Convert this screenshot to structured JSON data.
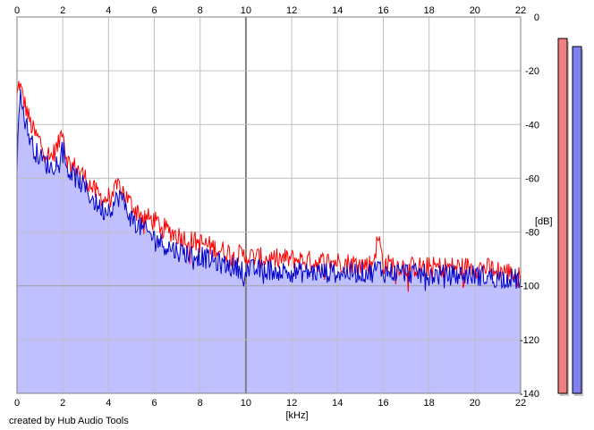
{
  "chart_data": {
    "type": "area",
    "title": "",
    "xlabel": "[kHz]",
    "ylabel": "[dB]",
    "x_unit": "kHz",
    "y_unit": "dB",
    "xlim": [
      0,
      22
    ],
    "ylim": [
      -140,
      0
    ],
    "x_ticks": [
      0,
      2,
      4,
      6,
      8,
      10,
      12,
      14,
      16,
      18,
      20,
      22
    ],
    "y_ticks": [
      0,
      -20,
      -40,
      -60,
      -80,
      -100,
      -120,
      -140
    ],
    "y_tick_labels": [
      "0",
      "-20",
      "-40",
      "-60",
      "-80",
      "-100",
      "-120",
      "-140"
    ],
    "grid": true,
    "x_tick_position": "top and bottom",
    "y_tick_position": "right",
    "series": [
      {
        "channel": "left",
        "color": "#ff0000",
        "x": [
          0.0,
          0.1,
          0.2,
          0.4,
          0.6,
          0.8,
          1.0,
          1.2,
          1.5,
          1.8,
          2.0,
          2.1,
          2.3,
          2.6,
          3.0,
          3.4,
          3.8,
          4.0,
          4.2,
          4.5,
          4.7,
          5.0,
          5.5,
          6.0,
          6.5,
          7.0,
          7.5,
          8.0,
          9.0,
          10.0,
          11.0,
          12.0,
          13.0,
          14.0,
          15.0,
          15.5,
          15.8,
          16.0,
          16.5,
          17.0,
          18.0,
          19.0,
          20.0,
          21.0,
          21.5,
          22.0
        ],
        "y": [
          -30,
          -24,
          -28,
          -34,
          -40,
          -44,
          -46,
          -50,
          -52,
          -48,
          -40,
          -50,
          -55,
          -56,
          -60,
          -65,
          -68,
          -67,
          -66,
          -62,
          -66,
          -70,
          -74,
          -76,
          -79,
          -81,
          -83,
          -84,
          -87,
          -89,
          -90,
          -90,
          -91,
          -91,
          -92,
          -92,
          -82,
          -92,
          -92,
          -93,
          -93,
          -93,
          -93,
          -94,
          -95,
          -97
        ]
      },
      {
        "channel": "right",
        "color": "#0000cc",
        "fill": "#c0c0ff",
        "x": [
          0.0,
          0.1,
          0.2,
          0.4,
          0.6,
          0.8,
          1.0,
          1.2,
          1.5,
          1.8,
          2.0,
          2.1,
          2.3,
          2.6,
          3.0,
          3.4,
          3.8,
          4.0,
          4.2,
          4.5,
          4.7,
          5.0,
          5.5,
          6.0,
          6.5,
          7.0,
          7.5,
          8.0,
          9.0,
          10.0,
          11.0,
          12.0,
          13.0,
          14.0,
          15.0,
          15.5,
          15.8,
          16.0,
          16.5,
          17.0,
          18.0,
          19.0,
          20.0,
          21.0,
          21.5,
          22.0
        ],
        "y": [
          -54,
          -28,
          -32,
          -40,
          -46,
          -50,
          -52,
          -54,
          -56,
          -53,
          -46,
          -54,
          -58,
          -60,
          -64,
          -69,
          -72,
          -71,
          -70,
          -66,
          -70,
          -75,
          -79,
          -82,
          -85,
          -87,
          -88,
          -89,
          -92,
          -94,
          -94,
          -95,
          -95,
          -95,
          -95,
          -95,
          -93,
          -95,
          -95,
          -95,
          -96,
          -96,
          -96,
          -97,
          -97,
          -98
        ]
      }
    ],
    "level_meters": [
      {
        "channel": "left",
        "color": "#f08080",
        "value_db": -8
      },
      {
        "channel": "right",
        "color": "#8080f0",
        "value_db": -11
      }
    ]
  },
  "footer": {
    "credit": "created by Hub Audio Tools"
  }
}
